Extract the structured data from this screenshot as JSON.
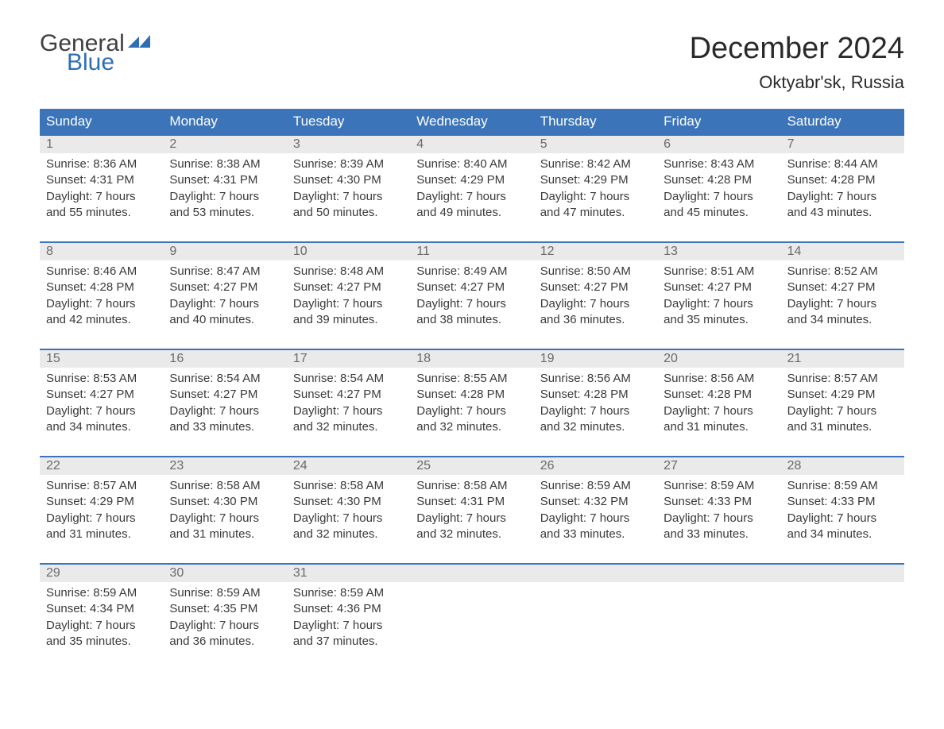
{
  "logo": {
    "word1": "General",
    "word2": "Blue",
    "word1_color": "#404040",
    "word2_color": "#2f6eb5",
    "flag_color": "#2f6eb5"
  },
  "title": "December 2024",
  "subtitle": "Oktyabr'sk, Russia",
  "colors": {
    "header_bg": "#3b74b9",
    "header_text": "#ffffff",
    "daynum_bg": "#eaeaea",
    "daynum_text": "#6a6a6a",
    "body_text": "#3a3a3a",
    "week_border": "#3b74b9",
    "page_bg": "#ffffff"
  },
  "typography": {
    "title_fontsize": 38,
    "subtitle_fontsize": 22,
    "header_fontsize": 17,
    "daynum_fontsize": 16,
    "cell_fontsize": 15,
    "font_family": "Arial"
  },
  "layout": {
    "columns": 7,
    "rows": 5
  },
  "day_names": [
    "Sunday",
    "Monday",
    "Tuesday",
    "Wednesday",
    "Thursday",
    "Friday",
    "Saturday"
  ],
  "labels": {
    "sunrise": "Sunrise:",
    "sunset": "Sunset:",
    "daylight": "Daylight:"
  },
  "weeks": [
    [
      {
        "num": "1",
        "sunrise": "8:36 AM",
        "sunset": "4:31 PM",
        "daylight1": "7 hours",
        "daylight2": "and 55 minutes."
      },
      {
        "num": "2",
        "sunrise": "8:38 AM",
        "sunset": "4:31 PM",
        "daylight1": "7 hours",
        "daylight2": "and 53 minutes."
      },
      {
        "num": "3",
        "sunrise": "8:39 AM",
        "sunset": "4:30 PM",
        "daylight1": "7 hours",
        "daylight2": "and 50 minutes."
      },
      {
        "num": "4",
        "sunrise": "8:40 AM",
        "sunset": "4:29 PM",
        "daylight1": "7 hours",
        "daylight2": "and 49 minutes."
      },
      {
        "num": "5",
        "sunrise": "8:42 AM",
        "sunset": "4:29 PM",
        "daylight1": "7 hours",
        "daylight2": "and 47 minutes."
      },
      {
        "num": "6",
        "sunrise": "8:43 AM",
        "sunset": "4:28 PM",
        "daylight1": "7 hours",
        "daylight2": "and 45 minutes."
      },
      {
        "num": "7",
        "sunrise": "8:44 AM",
        "sunset": "4:28 PM",
        "daylight1": "7 hours",
        "daylight2": "and 43 minutes."
      }
    ],
    [
      {
        "num": "8",
        "sunrise": "8:46 AM",
        "sunset": "4:28 PM",
        "daylight1": "7 hours",
        "daylight2": "and 42 minutes."
      },
      {
        "num": "9",
        "sunrise": "8:47 AM",
        "sunset": "4:27 PM",
        "daylight1": "7 hours",
        "daylight2": "and 40 minutes."
      },
      {
        "num": "10",
        "sunrise": "8:48 AM",
        "sunset": "4:27 PM",
        "daylight1": "7 hours",
        "daylight2": "and 39 minutes."
      },
      {
        "num": "11",
        "sunrise": "8:49 AM",
        "sunset": "4:27 PM",
        "daylight1": "7 hours",
        "daylight2": "and 38 minutes."
      },
      {
        "num": "12",
        "sunrise": "8:50 AM",
        "sunset": "4:27 PM",
        "daylight1": "7 hours",
        "daylight2": "and 36 minutes."
      },
      {
        "num": "13",
        "sunrise": "8:51 AM",
        "sunset": "4:27 PM",
        "daylight1": "7 hours",
        "daylight2": "and 35 minutes."
      },
      {
        "num": "14",
        "sunrise": "8:52 AM",
        "sunset": "4:27 PM",
        "daylight1": "7 hours",
        "daylight2": "and 34 minutes."
      }
    ],
    [
      {
        "num": "15",
        "sunrise": "8:53 AM",
        "sunset": "4:27 PM",
        "daylight1": "7 hours",
        "daylight2": "and 34 minutes."
      },
      {
        "num": "16",
        "sunrise": "8:54 AM",
        "sunset": "4:27 PM",
        "daylight1": "7 hours",
        "daylight2": "and 33 minutes."
      },
      {
        "num": "17",
        "sunrise": "8:54 AM",
        "sunset": "4:27 PM",
        "daylight1": "7 hours",
        "daylight2": "and 32 minutes."
      },
      {
        "num": "18",
        "sunrise": "8:55 AM",
        "sunset": "4:28 PM",
        "daylight1": "7 hours",
        "daylight2": "and 32 minutes."
      },
      {
        "num": "19",
        "sunrise": "8:56 AM",
        "sunset": "4:28 PM",
        "daylight1": "7 hours",
        "daylight2": "and 32 minutes."
      },
      {
        "num": "20",
        "sunrise": "8:56 AM",
        "sunset": "4:28 PM",
        "daylight1": "7 hours",
        "daylight2": "and 31 minutes."
      },
      {
        "num": "21",
        "sunrise": "8:57 AM",
        "sunset": "4:29 PM",
        "daylight1": "7 hours",
        "daylight2": "and 31 minutes."
      }
    ],
    [
      {
        "num": "22",
        "sunrise": "8:57 AM",
        "sunset": "4:29 PM",
        "daylight1": "7 hours",
        "daylight2": "and 31 minutes."
      },
      {
        "num": "23",
        "sunrise": "8:58 AM",
        "sunset": "4:30 PM",
        "daylight1": "7 hours",
        "daylight2": "and 31 minutes."
      },
      {
        "num": "24",
        "sunrise": "8:58 AM",
        "sunset": "4:30 PM",
        "daylight1": "7 hours",
        "daylight2": "and 32 minutes."
      },
      {
        "num": "25",
        "sunrise": "8:58 AM",
        "sunset": "4:31 PM",
        "daylight1": "7 hours",
        "daylight2": "and 32 minutes."
      },
      {
        "num": "26",
        "sunrise": "8:59 AM",
        "sunset": "4:32 PM",
        "daylight1": "7 hours",
        "daylight2": "and 33 minutes."
      },
      {
        "num": "27",
        "sunrise": "8:59 AM",
        "sunset": "4:33 PM",
        "daylight1": "7 hours",
        "daylight2": "and 33 minutes."
      },
      {
        "num": "28",
        "sunrise": "8:59 AM",
        "sunset": "4:33 PM",
        "daylight1": "7 hours",
        "daylight2": "and 34 minutes."
      }
    ],
    [
      {
        "num": "29",
        "sunrise": "8:59 AM",
        "sunset": "4:34 PM",
        "daylight1": "7 hours",
        "daylight2": "and 35 minutes."
      },
      {
        "num": "30",
        "sunrise": "8:59 AM",
        "sunset": "4:35 PM",
        "daylight1": "7 hours",
        "daylight2": "and 36 minutes."
      },
      {
        "num": "31",
        "sunrise": "8:59 AM",
        "sunset": "4:36 PM",
        "daylight1": "7 hours",
        "daylight2": "and 37 minutes."
      },
      null,
      null,
      null,
      null
    ]
  ]
}
